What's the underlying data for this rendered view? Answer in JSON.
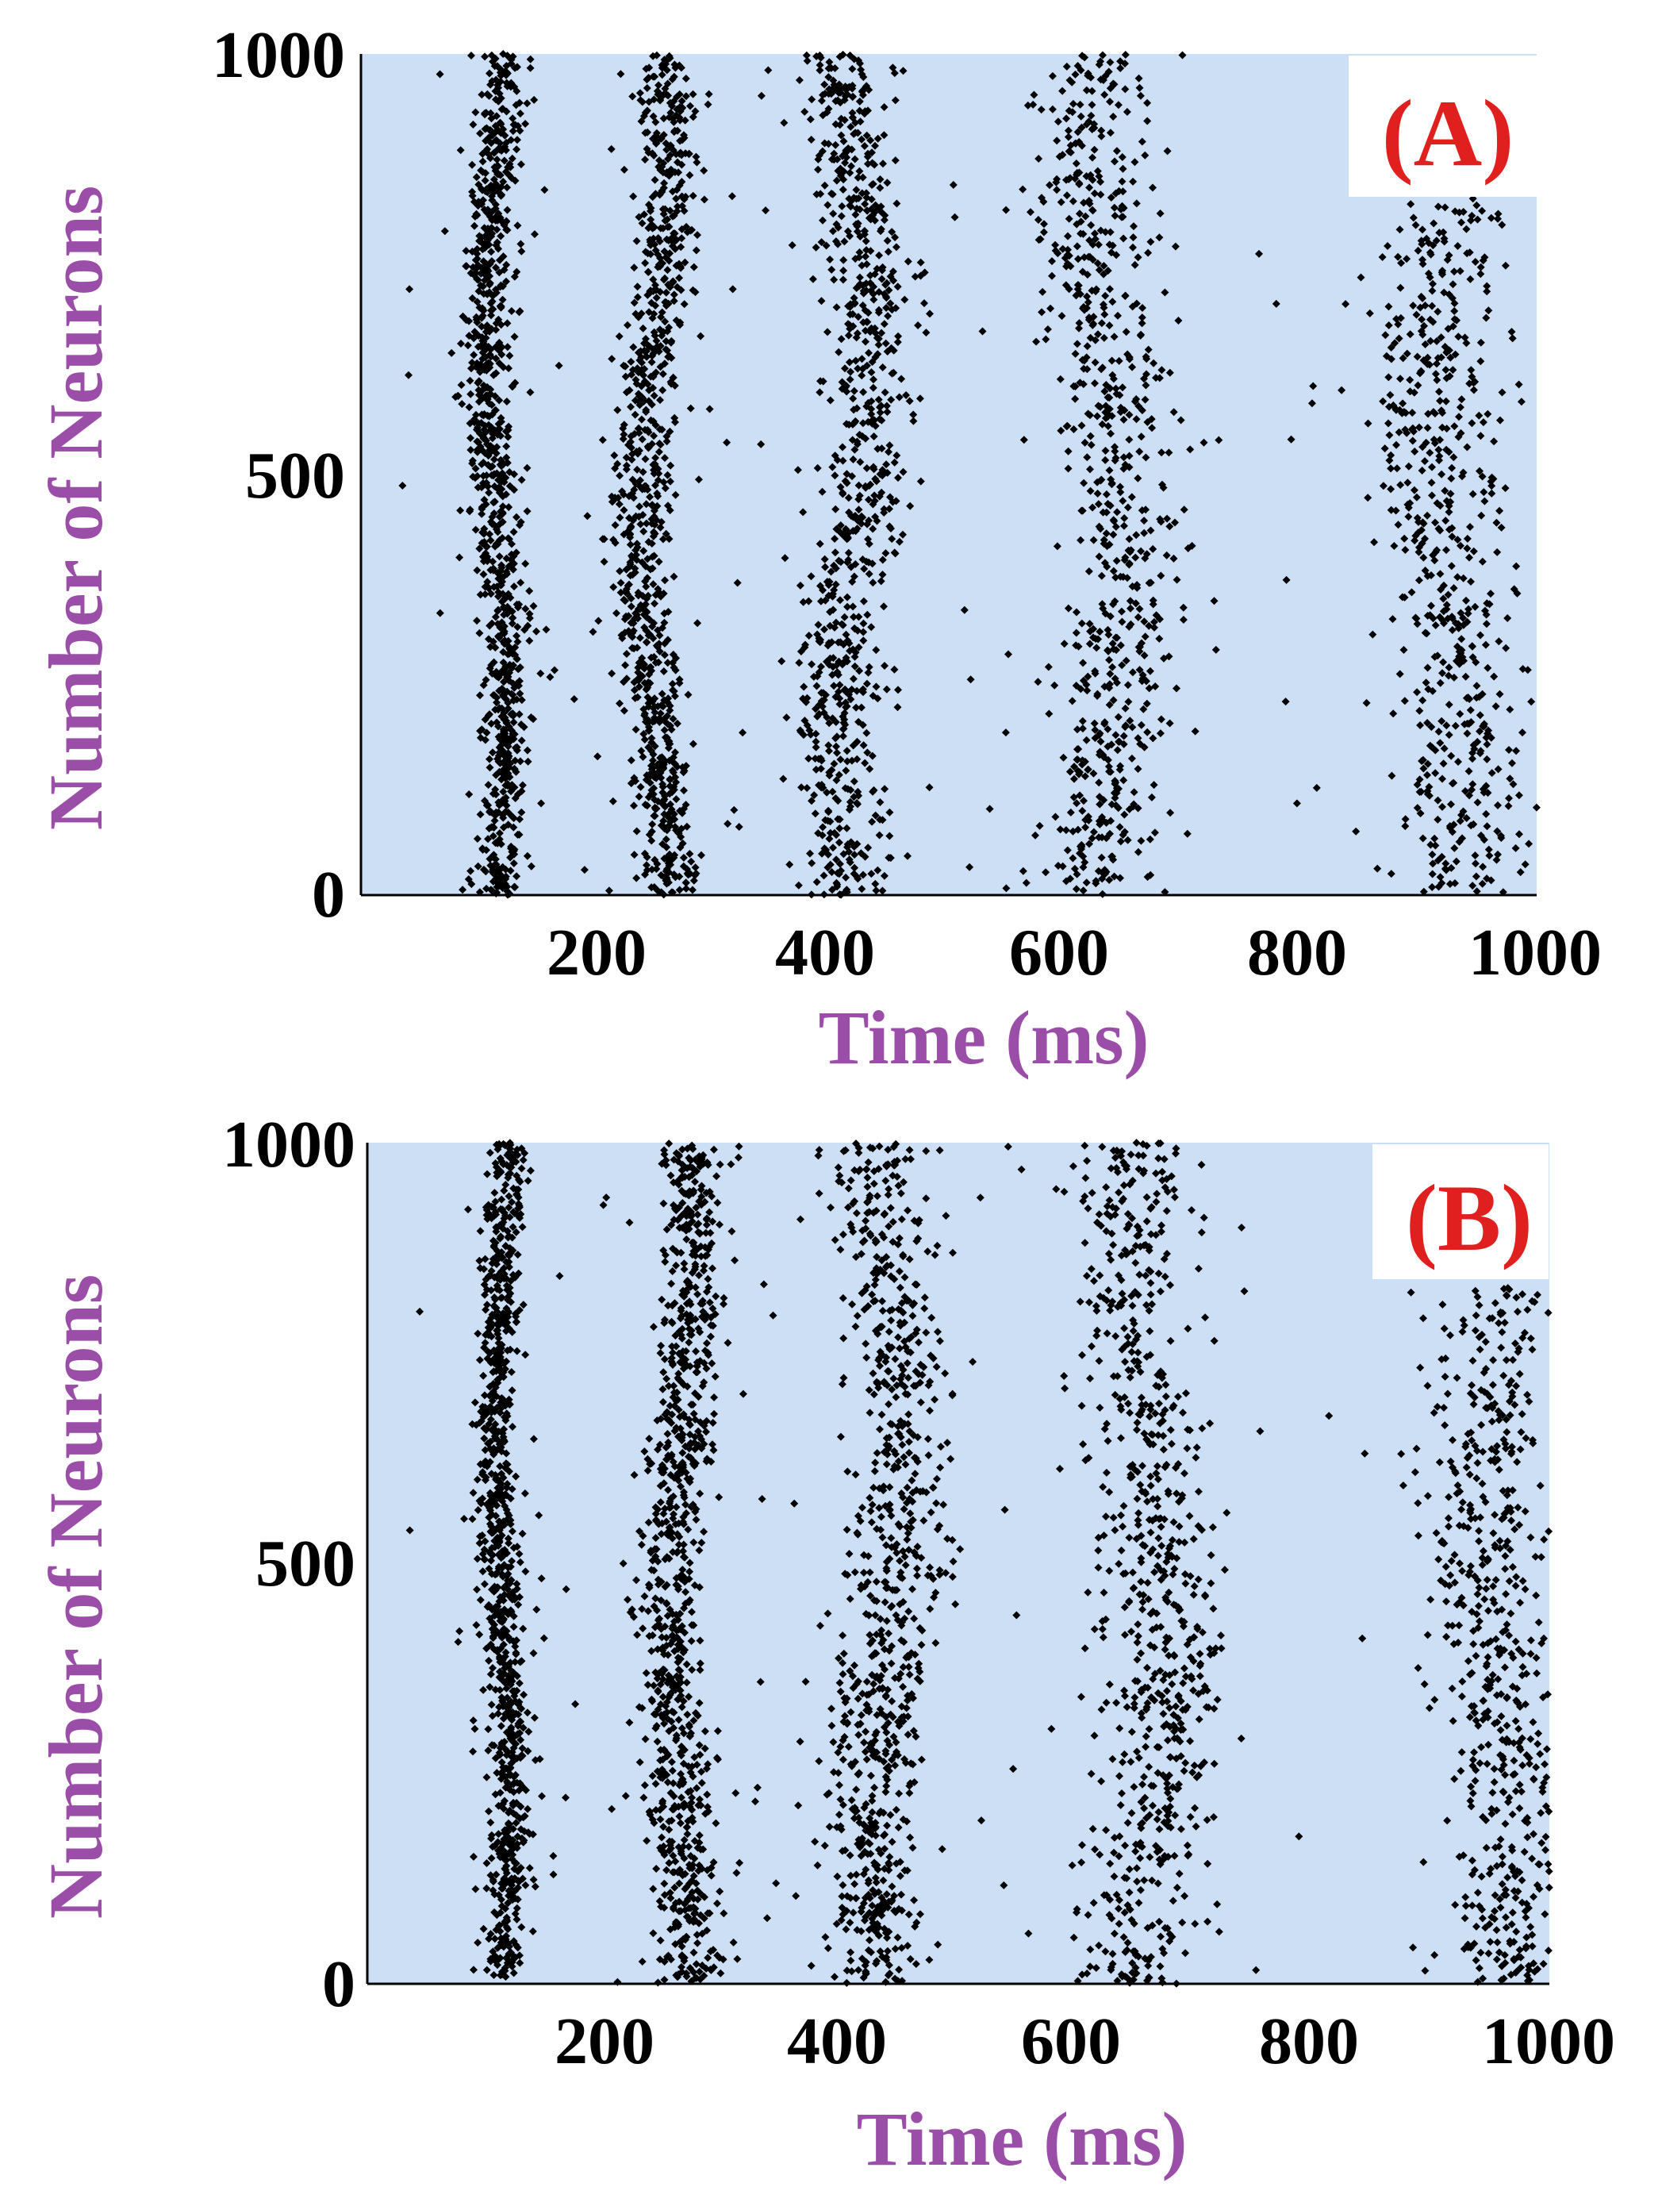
{
  "colors": {
    "plot_background": "#cddff5",
    "spike": "#000000",
    "axis_title": "#9b4ea8",
    "panel_label": "#e0201e",
    "axes_line": "#000000"
  },
  "chart_data": [
    {
      "type": "scatter",
      "panel_label": "(A)",
      "title": "",
      "xlabel": "Time (ms)",
      "ylabel": "Number of Neurons",
      "xlim": [
        0,
        1000
      ],
      "ylim": [
        0,
        1000
      ],
      "xticks": [
        200,
        400,
        600,
        800,
        1000
      ],
      "xtick_labels": [
        "200",
        "400",
        "600",
        "800",
        "1000"
      ],
      "yticks": [
        0,
        500,
        1000
      ],
      "ytick_labels": [
        "0",
        "500",
        "1000"
      ],
      "grid": false,
      "description_of_series": "Raster plot of spike times; each dot is one neuron firing. Five population bursts, widening over time.",
      "bursts": [
        {
          "center_ms": 115,
          "width_ms": 22,
          "drift_ms": 8,
          "density": 1.0,
          "y_range": [
            0,
            1000
          ]
        },
        {
          "center_ms": 250,
          "width_ms": 28,
          "drift_ms": 12,
          "density": 0.95,
          "y_range": [
            0,
            1000
          ]
        },
        {
          "center_ms": 420,
          "width_ms": 40,
          "drift_ms": 14,
          "density": 0.85,
          "y_range": [
            0,
            1000
          ]
        },
        {
          "center_ms": 635,
          "width_ms": 55,
          "drift_ms": 18,
          "density": 0.75,
          "y_range": [
            0,
            1000
          ]
        },
        {
          "center_ms": 925,
          "width_ms": 62,
          "drift_ms": 15,
          "density": 0.6,
          "y_range": [
            0,
            830
          ]
        }
      ]
    },
    {
      "type": "scatter",
      "panel_label": "(B)",
      "title": "",
      "xlabel": "Time (ms)",
      "ylabel": "Number of Neurons",
      "xlim": [
        0,
        1000
      ],
      "ylim": [
        0,
        1000
      ],
      "xticks": [
        200,
        400,
        600,
        800,
        1000
      ],
      "xtick_labels": [
        "200",
        "400",
        "600",
        "800",
        "1000"
      ],
      "yticks": [
        0,
        500,
        1000
      ],
      "ytick_labels": [
        "0",
        "500",
        "1000"
      ],
      "grid": false,
      "description_of_series": "Raster plot of spike times; each dot is one neuron firing. Five population bursts, widening over time.",
      "bursts": [
        {
          "center_ms": 115,
          "width_ms": 18,
          "drift_ms": 6,
          "density": 1.0,
          "y_range": [
            0,
            1000
          ]
        },
        {
          "center_ms": 265,
          "width_ms": 30,
          "drift_ms": 10,
          "density": 0.95,
          "y_range": [
            0,
            1000
          ]
        },
        {
          "center_ms": 440,
          "width_ms": 42,
          "drift_ms": 12,
          "density": 0.85,
          "y_range": [
            0,
            1000
          ]
        },
        {
          "center_ms": 660,
          "width_ms": 55,
          "drift_ms": 16,
          "density": 0.75,
          "y_range": [
            0,
            1000
          ]
        },
        {
          "center_ms": 955,
          "width_ms": 55,
          "drift_ms": 14,
          "density": 0.6,
          "y_range": [
            0,
            830
          ]
        }
      ]
    }
  ]
}
